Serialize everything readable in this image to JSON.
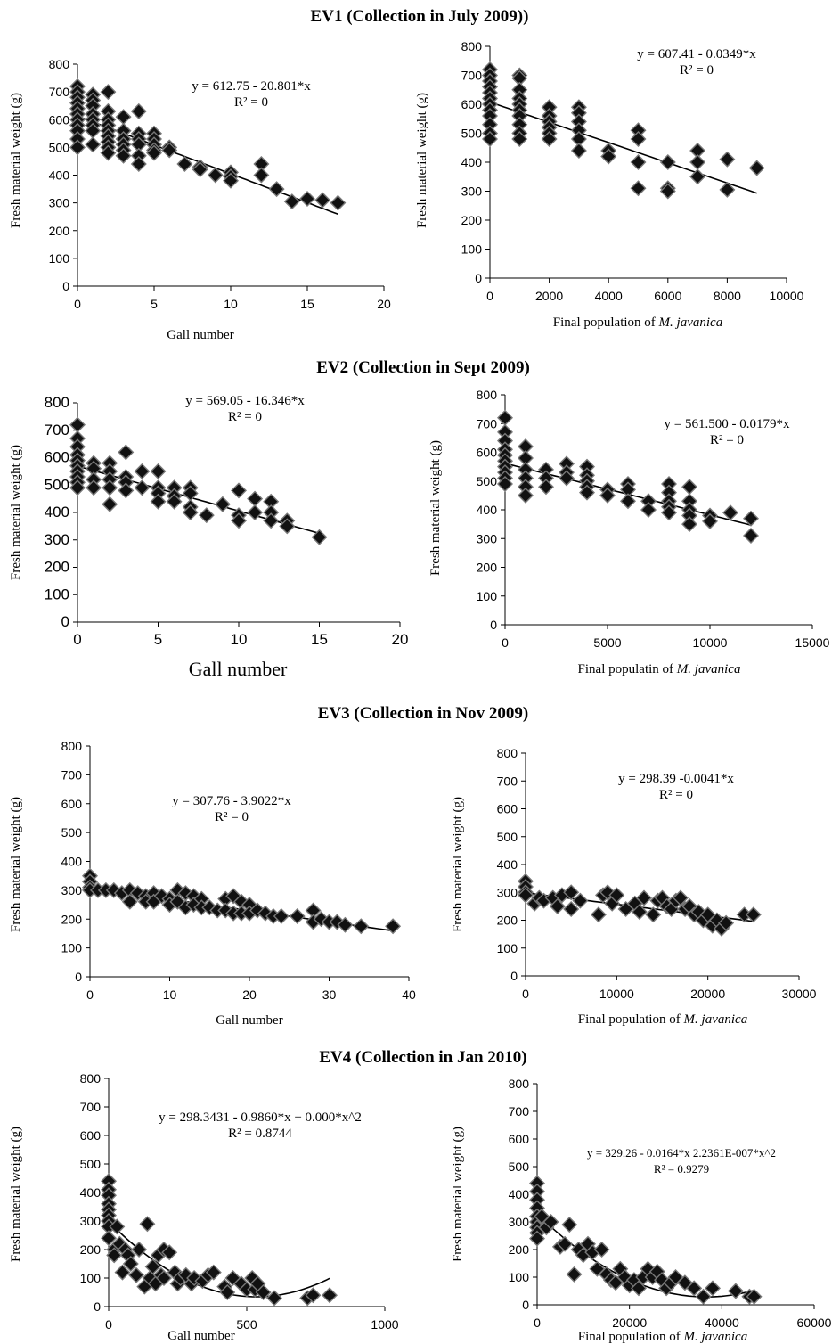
{
  "sections": [
    {
      "title": "EV1 (Collection in July 2009))"
    },
    {
      "title": "EV2 (Collection in Sept 2009)"
    },
    {
      "title": "EV3 (Collection in Nov 2009)"
    },
    {
      "title": "EV4 (Collection in Jan 2010)"
    }
  ],
  "chart_data": [
    {
      "type": "scatter",
      "section": 0,
      "xlabel": "Gall number",
      "xlabel_italic": "",
      "ylabel": "Fresh material weight (g)",
      "xlim": [
        0,
        20
      ],
      "xticks": [
        0,
        5,
        10,
        15,
        20
      ],
      "ylim": [
        0,
        800
      ],
      "yticks": [
        0,
        100,
        200,
        300,
        400,
        500,
        600,
        700,
        800
      ],
      "equation": "y = 612.75 - 20.801*x",
      "r2": "R² = 0",
      "trend": {
        "kind": "linear",
        "coef": [
          612.75,
          -20.801
        ],
        "x_range": [
          0,
          17
        ]
      },
      "x": [
        0,
        0,
        0,
        0,
        0,
        0,
        0,
        0,
        0,
        0,
        0,
        1,
        1,
        1,
        1,
        1,
        1,
        1,
        1,
        2,
        2,
        2,
        2,
        2,
        2,
        2,
        2,
        2,
        3,
        3,
        3,
        3,
        3,
        3,
        4,
        4,
        4,
        4,
        4,
        4,
        5,
        5,
        5,
        5,
        5,
        6,
        6,
        7,
        8,
        8,
        9,
        10,
        10,
        10,
        12,
        12,
        13,
        14,
        15,
        16,
        17
      ],
      "y": [
        720,
        700,
        680,
        660,
        640,
        620,
        600,
        580,
        560,
        530,
        500,
        690,
        670,
        650,
        620,
        600,
        580,
        560,
        510,
        700,
        630,
        600,
        580,
        560,
        540,
        520,
        500,
        480,
        610,
        560,
        530,
        510,
        490,
        470,
        630,
        550,
        530,
        510,
        470,
        440,
        550,
        530,
        510,
        490,
        480,
        500,
        490,
        440,
        430,
        420,
        400,
        410,
        395,
        380,
        440,
        400,
        350,
        305,
        315,
        310,
        300
      ]
    },
    {
      "type": "scatter",
      "section": 0,
      "xlabel": "Final population of ",
      "xlabel_italic": "M. javanica",
      "ylabel": "Fresh material weight (g)",
      "xlim": [
        0,
        10000
      ],
      "xticks": [
        0,
        2000,
        4000,
        6000,
        8000,
        10000
      ],
      "ylim": [
        0,
        800
      ],
      "yticks": [
        0,
        100,
        200,
        300,
        400,
        500,
        600,
        700,
        800
      ],
      "equation": "y = 607.41 - 0.0349*x",
      "r2": "R² = 0",
      "trend": {
        "kind": "linear",
        "coef": [
          607.41,
          -0.0349
        ],
        "x_range": [
          0,
          9000
        ]
      },
      "x": [
        0,
        0,
        0,
        0,
        0,
        0,
        0,
        0,
        0,
        0,
        0,
        0,
        1000,
        1000,
        1000,
        1000,
        1000,
        1000,
        1000,
        1000,
        1000,
        1000,
        2000,
        2000,
        2000,
        2000,
        2000,
        2000,
        3000,
        3000,
        3000,
        3000,
        3000,
        3000,
        4000,
        4000,
        5000,
        5000,
        5000,
        5000,
        6000,
        6000,
        6000,
        7000,
        7000,
        7000,
        8000,
        8000,
        9000
      ],
      "y": [
        720,
        700,
        680,
        660,
        640,
        620,
        600,
        580,
        560,
        530,
        500,
        480,
        700,
        690,
        650,
        620,
        600,
        580,
        560,
        530,
        500,
        480,
        590,
        560,
        540,
        520,
        500,
        480,
        590,
        570,
        540,
        510,
        480,
        440,
        440,
        420,
        510,
        480,
        400,
        310,
        400,
        310,
        300,
        440,
        400,
        350,
        410,
        305,
        380
      ]
    },
    {
      "type": "scatter",
      "section": 1,
      "xlabel": "Gall number",
      "xlabel_italic": "",
      "ylabel": "Fresh material weight (g)",
      "xlim": [
        0,
        20
      ],
      "xticks": [
        0,
        5,
        10,
        15,
        20
      ],
      "ylim": [
        0,
        800
      ],
      "yticks": [
        0,
        100,
        200,
        300,
        400,
        500,
        600,
        700,
        800
      ],
      "equation": "y = 569.05 - 16.346*x",
      "r2": "R² = 0",
      "trend": {
        "kind": "linear",
        "coef": [
          569.05,
          -16.346
        ],
        "x_range": [
          0,
          15
        ]
      },
      "x": [
        0,
        0,
        0,
        0,
        0,
        0,
        0,
        0,
        0,
        0,
        1,
        1,
        1,
        1,
        2,
        2,
        2,
        2,
        2,
        3,
        3,
        3,
        3,
        4,
        4,
        5,
        5,
        5,
        5,
        6,
        6,
        6,
        7,
        7,
        7,
        7,
        8,
        9,
        10,
        10,
        10,
        11,
        11,
        12,
        12,
        12,
        13,
        13,
        15
      ],
      "y": [
        720,
        670,
        640,
        610,
        590,
        570,
        550,
        530,
        510,
        490,
        580,
        560,
        520,
        490,
        580,
        550,
        520,
        490,
        430,
        620,
        530,
        510,
        480,
        550,
        490,
        550,
        490,
        470,
        440,
        490,
        460,
        440,
        490,
        470,
        420,
        400,
        390,
        430,
        480,
        390,
        370,
        450,
        400,
        440,
        400,
        370,
        370,
        350,
        310
      ]
    },
    {
      "type": "scatter",
      "section": 1,
      "xlabel": "Final populatin of ",
      "xlabel_italic": "M. javanica",
      "ylabel": "Fresh material weight (g)",
      "xlim": [
        0,
        15000
      ],
      "xticks": [
        0,
        5000,
        10000,
        15000
      ],
      "ylim": [
        0,
        800
      ],
      "yticks": [
        0,
        100,
        200,
        300,
        400,
        500,
        600,
        700,
        800
      ],
      "equation": "y = 561.500 - 0.0179*x",
      "r2": "R² = 0",
      "trend": {
        "kind": "linear",
        "coef": [
          561.5,
          -0.0179
        ],
        "x_range": [
          0,
          12000
        ]
      },
      "x": [
        0,
        0,
        0,
        0,
        0,
        0,
        0,
        0,
        0,
        0,
        1000,
        1000,
        1000,
        1000,
        1000,
        1000,
        2000,
        2000,
        2000,
        3000,
        3000,
        3000,
        4000,
        4000,
        4000,
        4000,
        4000,
        5000,
        5000,
        6000,
        6000,
        6000,
        7000,
        7000,
        8000,
        8000,
        8000,
        8000,
        8000,
        9000,
        9000,
        9000,
        9000,
        9000,
        10000,
        10000,
        11000,
        12000,
        12000
      ],
      "y": [
        720,
        670,
        640,
        610,
        590,
        570,
        550,
        530,
        510,
        490,
        620,
        580,
        540,
        510,
        480,
        450,
        540,
        510,
        480,
        560,
        530,
        510,
        550,
        520,
        500,
        480,
        460,
        470,
        450,
        490,
        470,
        430,
        430,
        400,
        490,
        460,
        430,
        410,
        390,
        480,
        430,
        400,
        380,
        350,
        380,
        360,
        390,
        370,
        310
      ]
    },
    {
      "type": "scatter",
      "section": 2,
      "xlabel": "Gall number",
      "xlabel_italic": "",
      "ylabel": "Fresh material weight (g)",
      "xlim": [
        0,
        40
      ],
      "xticks": [
        0,
        10,
        20,
        30,
        40
      ],
      "ylim": [
        0,
        800
      ],
      "yticks": [
        0,
        100,
        200,
        300,
        400,
        500,
        600,
        700,
        800
      ],
      "equation": "y = 307.76 - 3.9022*x",
      "r2": "R² = 0",
      "trend": {
        "kind": "linear",
        "coef": [
          307.76,
          -3.9022
        ],
        "x_range": [
          0,
          38
        ]
      },
      "x": [
        0,
        0,
        0,
        0,
        1,
        2,
        3,
        4,
        5,
        5,
        6,
        7,
        7,
        8,
        8,
        9,
        10,
        10,
        11,
        11,
        12,
        12,
        13,
        13,
        14,
        14,
        15,
        16,
        17,
        17,
        18,
        18,
        19,
        19,
        20,
        20,
        21,
        22,
        23,
        24,
        26,
        28,
        28,
        29,
        30,
        31,
        32,
        34,
        38
      ],
      "y": [
        350,
        330,
        310,
        300,
        300,
        300,
        300,
        290,
        300,
        260,
        290,
        280,
        260,
        290,
        260,
        280,
        270,
        250,
        300,
        260,
        290,
        240,
        280,
        250,
        270,
        240,
        240,
        230,
        270,
        230,
        280,
        220,
        260,
        220,
        250,
        220,
        230,
        220,
        210,
        210,
        210,
        230,
        190,
        200,
        190,
        190,
        180,
        175,
        175
      ]
    },
    {
      "type": "scatter",
      "section": 2,
      "xlabel": "Final population of ",
      "xlabel_italic": "M. javanica",
      "ylabel": "Fresh material weight (g)",
      "xlim": [
        0,
        30000
      ],
      "xticks": [
        0,
        10000,
        20000,
        30000
      ],
      "ylim": [
        0,
        800
      ],
      "yticks": [
        0,
        100,
        200,
        300,
        400,
        500,
        600,
        700,
        800
      ],
      "equation": "y = 298.39  -0.0041*x",
      "r2": "R² = 0",
      "trend": {
        "kind": "linear",
        "coef": [
          298.39,
          -0.0041
        ],
        "x_range": [
          0,
          25000
        ]
      },
      "x": [
        0,
        0,
        0,
        0,
        1000,
        1500,
        2000,
        3000,
        3500,
        4000,
        5000,
        5000,
        6000,
        8000,
        8500,
        9000,
        9500,
        10000,
        11000,
        12000,
        12500,
        13000,
        14000,
        14500,
        15000,
        15500,
        16000,
        16500,
        17000,
        17500,
        18000,
        18500,
        19000,
        19500,
        20000,
        20500,
        21000,
        21500,
        22000,
        24000,
        25000
      ],
      "y": [
        340,
        320,
        300,
        290,
        260,
        280,
        270,
        280,
        250,
        290,
        300,
        240,
        270,
        220,
        290,
        300,
        260,
        290,
        240,
        260,
        230,
        280,
        220,
        270,
        280,
        250,
        240,
        270,
        280,
        240,
        250,
        220,
        230,
        200,
        220,
        180,
        200,
        170,
        190,
        220,
        220
      ]
    },
    {
      "type": "scatter",
      "section": 3,
      "xlabel": "Gall number",
      "xlabel_italic": "",
      "ylabel": "Fresh material weight (g)",
      "xlim": [
        0,
        1000
      ],
      "xticks": [
        0,
        500,
        1000
      ],
      "ylim": [
        0,
        800
      ],
      "yticks": [
        0,
        100,
        200,
        300,
        400,
        500,
        600,
        700,
        800
      ],
      "equation": "y = 298.3431 - 0.9860*x + 0.000*x^2",
      "r2": "R² = 0.8744",
      "trend": {
        "kind": "quadratic",
        "coef": [
          298.3431,
          -0.986,
          0.000921
        ],
        "x_range": [
          0,
          800
        ]
      },
      "x": [
        0,
        0,
        0,
        0,
        0,
        0,
        0,
        0,
        0,
        20,
        20,
        30,
        40,
        50,
        60,
        70,
        80,
        100,
        110,
        130,
        140,
        150,
        160,
        170,
        180,
        190,
        200,
        200,
        220,
        240,
        250,
        260,
        280,
        300,
        310,
        340,
        360,
        380,
        420,
        430,
        450,
        480,
        500,
        520,
        530,
        540,
        560,
        600,
        720,
        740,
        800
      ],
      "y": [
        440,
        410,
        390,
        360,
        340,
        320,
        300,
        280,
        240,
        200,
        180,
        280,
        220,
        120,
        200,
        180,
        150,
        110,
        200,
        70,
        290,
        100,
        140,
        80,
        180,
        110,
        200,
        100,
        190,
        120,
        80,
        100,
        110,
        80,
        100,
        90,
        110,
        120,
        70,
        50,
        100,
        80,
        60,
        100,
        60,
        80,
        50,
        30,
        30,
        40,
        40
      ]
    },
    {
      "type": "scatter",
      "section": 3,
      "xlabel": "Final population of ",
      "xlabel_italic": "M. javanica",
      "ylabel": "Fresh  material weight (g)",
      "xlim": [
        0,
        60000
      ],
      "xticks": [
        0,
        20000,
        40000,
        60000
      ],
      "ylim": [
        0,
        800
      ],
      "yticks": [
        0,
        100,
        200,
        300,
        400,
        500,
        600,
        700,
        800
      ],
      "equation": "y = 329.26 - 0.0164*x  2.2361E-007*x^2",
      "r2": "R² = 0.9279",
      "trend": {
        "kind": "quadratic",
        "coef": [
          329.26,
          -0.0164,
          2.2361e-07
        ],
        "x_range": [
          0,
          47000
        ]
      },
      "x": [
        0,
        0,
        0,
        0,
        0,
        0,
        0,
        0,
        0,
        1000,
        2000,
        3000,
        5000,
        6000,
        7000,
        8000,
        9000,
        10000,
        11000,
        12000,
        13000,
        14000,
        15000,
        16000,
        17000,
        18000,
        19000,
        20000,
        21000,
        22000,
        23000,
        24000,
        25000,
        26000,
        27000,
        28000,
        29000,
        30000,
        32000,
        34000,
        36000,
        38000,
        43000,
        46000,
        47000
      ],
      "y": [
        440,
        410,
        380,
        350,
        320,
        300,
        280,
        260,
        240,
        320,
        280,
        300,
        210,
        220,
        290,
        110,
        200,
        180,
        220,
        190,
        130,
        200,
        110,
        90,
        80,
        130,
        100,
        70,
        90,
        60,
        100,
        130,
        100,
        120,
        90,
        60,
        80,
        100,
        80,
        60,
        30,
        60,
        50,
        30,
        30
      ]
    }
  ]
}
